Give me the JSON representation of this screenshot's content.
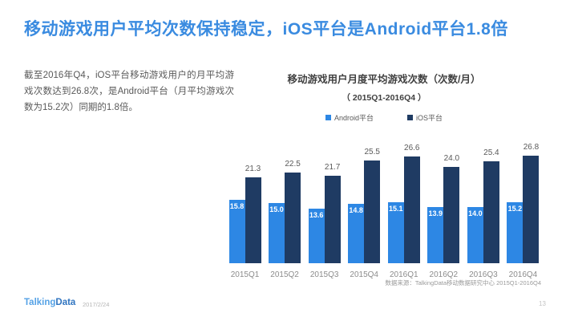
{
  "slide": {
    "title": "移动游戏用户平均次数保持稳定，iOS平台是Android平台1.8倍",
    "body_text": "截至2016年Q4，iOS平台移动游戏用户的月平均游戏次数达到26.8次，是Android平台（月平均游戏次数为15.2次）同期的1.8倍。",
    "page_number": "13"
  },
  "footer": {
    "logo_part1": "Talking",
    "logo_part2": "Data",
    "date": "2017/2/24"
  },
  "colors": {
    "title_blue": "#3a8be0",
    "android": "#2d87e4",
    "ios": "#1f3b63",
    "logo_light": "#55a2e6",
    "logo_dark": "#2f74c0"
  },
  "chart_data": {
    "type": "bar",
    "title": "移动游戏用户月度平均游戏次数（次数/月）",
    "subtitle": "（ 2015Q1-2016Q4 ）",
    "source_note": "数据来源：TalkingData移动数据研究中心   2015Q1-2016Q4",
    "categories": [
      "2015Q1",
      "2015Q2",
      "2015Q3",
      "2015Q4",
      "2016Q1",
      "2016Q2",
      "2016Q3",
      "2016Q4"
    ],
    "series": [
      {
        "name": "Android平台",
        "color_key": "android",
        "label_position": "inside",
        "values": [
          15.8,
          15.0,
          13.6,
          14.8,
          15.1,
          13.9,
          14.0,
          15.2
        ]
      },
      {
        "name": "iOS平台",
        "color_key": "ios",
        "label_position": "above",
        "values": [
          21.3,
          22.5,
          21.7,
          25.5,
          26.6,
          24.0,
          25.4,
          26.8
        ]
      }
    ],
    "ylim": [
      0,
      32
    ],
    "grid": false,
    "legend_position": "top",
    "xlabel": "",
    "ylabel": ""
  }
}
